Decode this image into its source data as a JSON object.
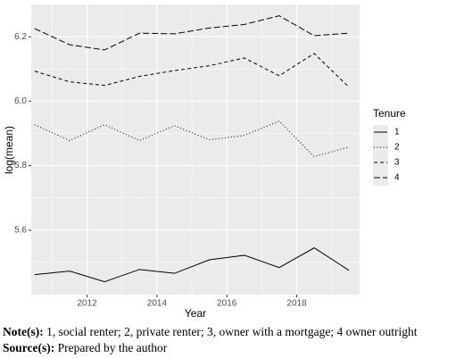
{
  "chart_data": {
    "type": "line",
    "x_label": "Year",
    "y_label": "log(mean)",
    "x": [
      2010.5,
      2011.5,
      2012.5,
      2013.5,
      2014.5,
      2015.5,
      2016.5,
      2017.5,
      2018.5,
      2019.5
    ],
    "series": [
      {
        "name": "1",
        "color": "#000000",
        "linetype": "solid",
        "values": [
          5.462,
          5.473,
          5.44,
          5.478,
          5.466,
          5.508,
          5.522,
          5.484,
          5.545,
          5.475
        ]
      },
      {
        "name": "2",
        "color": "#000000",
        "linetype": "dotted",
        "values": [
          5.927,
          5.878,
          5.927,
          5.878,
          5.924,
          5.88,
          5.894,
          5.938,
          5.828,
          5.858
        ]
      },
      {
        "name": "3",
        "color": "#000000",
        "linetype": "dashed",
        "values": [
          6.093,
          6.06,
          6.049,
          6.077,
          6.095,
          6.11,
          6.134,
          6.079,
          6.148,
          6.043
        ]
      },
      {
        "name": "4",
        "color": "#000000",
        "linetype": "longdash",
        "values": [
          6.225,
          6.175,
          6.159,
          6.211,
          6.209,
          6.227,
          6.238,
          6.265,
          6.203,
          6.211
        ]
      }
    ],
    "legend_title": "Tenure",
    "xlim": [
      2010.4,
      2019.8
    ],
    "xticks": [
      2012,
      2014,
      2016,
      2018
    ],
    "ylim": [
      5.4,
      6.3
    ],
    "yticks": [
      {
        "value": 5.6,
        "label": "5.6"
      },
      {
        "value": 5.8,
        "label": "5.8"
      },
      {
        "value": 6.0,
        "label": "6.0"
      },
      {
        "value": 6.2,
        "label": "6.2"
      }
    ],
    "grid": true,
    "legend_position": "right"
  },
  "notes": {
    "note_label": "Note(s):",
    "note_text": "1, social renter; 2, private renter; 3, owner with a mortgage; 4 owner outright",
    "source_label": "Source(s):",
    "source_text": "Prepared by the author"
  }
}
